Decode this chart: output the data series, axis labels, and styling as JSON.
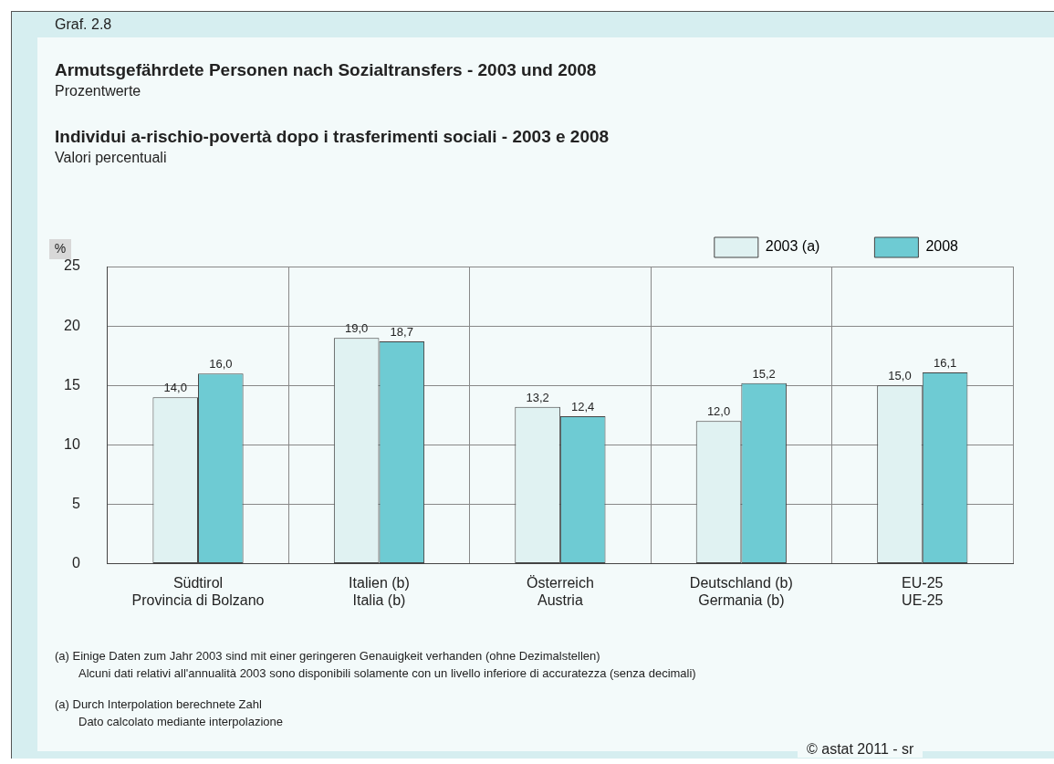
{
  "chart_data": {
    "type": "bar",
    "title": "Armutsgefährdete Personen nach Sozialtransfers - 2003 und 2008",
    "subtitle": "Prozentwerte",
    "ylabel": "%",
    "categories": [
      "Südtirol\nProvincia di Bolzano",
      "Italien (b)\nItalia (b)",
      "Österreich\nAustria",
      "Deutschland (b)\nGermania (b)",
      "EU-25\nUE-25"
    ],
    "series": [
      {
        "name": "2003 (a)",
        "color": "#e0f2f2",
        "values": [
          14.0,
          19.0,
          13.2,
          12.0,
          15.0
        ]
      },
      {
        "name": "2008",
        "color": "#6ecbd3",
        "values": [
          16.0,
          18.7,
          12.4,
          15.2,
          16.1
        ]
      }
    ],
    "value_labels": [
      [
        "14,0",
        "19,0",
        "13,2",
        "12,0",
        "15,0"
      ],
      [
        "16,0",
        "18,7",
        "12,4",
        "15,2",
        "16,1"
      ]
    ],
    "ylim": [
      0,
      25
    ],
    "yticks": [
      0,
      5,
      10,
      15,
      20,
      25
    ],
    "grid": true,
    "legend": "top right",
    "annotations": [
      "Graf. 2.8",
      "Individui a-rischio-povertà dopo i trasferimenti sociali - 2003 e 2008",
      "Valori percentuali",
      "(a)  Einige Daten zum Jahr 2003 sind mit einer geringeren Genauigkeit verhanden (ohne Dezimalstellen)",
      "Alcuni dati relativi all'annualità 2003 sono disponibili solamente con un livello inferiore di accuratezza (senza decimali)",
      "(a)  Durch Interpolation berechnete Zahl",
      "Dato calcolato mediante interpolazione",
      "© astat 2011 - sr"
    ]
  }
}
